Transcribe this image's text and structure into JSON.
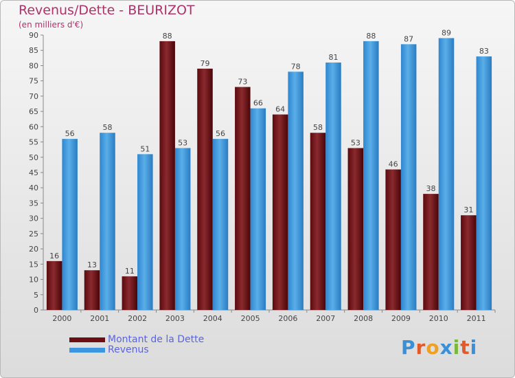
{
  "title": "Revenus/Dette - BEURIZOT",
  "subtitle": "(en milliers d'€)",
  "logo": {
    "text": "Proxiti",
    "letter_colors": [
      "#3a8fd6",
      "#e05a2a",
      "#f0a020",
      "#3a8fd6",
      "#7ab83a",
      "#e05a2a",
      "#3a8fd6"
    ]
  },
  "legend": [
    {
      "label": "Montant de la Dette",
      "color": "#6b0f14"
    },
    {
      "label": "Revenus",
      "color": "#3c97e0"
    }
  ],
  "chart_data": {
    "type": "bar",
    "categories": [
      "2000",
      "2001",
      "2002",
      "2003",
      "2004",
      "2005",
      "2006",
      "2007",
      "2008",
      "2009",
      "2010",
      "2011"
    ],
    "series": [
      {
        "name": "Montant de la Dette",
        "color": "#6b0f14",
        "values": [
          16,
          13,
          11,
          88,
          79,
          73,
          64,
          58,
          53,
          46,
          38,
          31
        ]
      },
      {
        "name": "Revenus",
        "color": "#3c97e0",
        "values": [
          56,
          58,
          51,
          53,
          56,
          66,
          78,
          81,
          88,
          87,
          89,
          83
        ]
      }
    ],
    "ylim": [
      0,
      90
    ],
    "ytick_step": 5,
    "xlabel": "",
    "ylabel": "",
    "grid": false,
    "legend_position": "bottom-left"
  }
}
